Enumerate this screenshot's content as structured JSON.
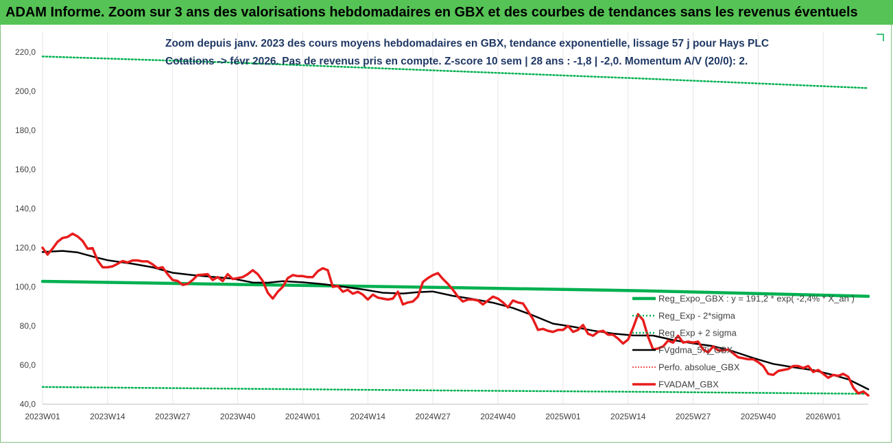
{
  "banner": {
    "title": "ADAM Informe. Zoom sur 3 ans des valorisations hebdomadaires en GBX et des courbes de tendances sans les revenus éventuels"
  },
  "colors": {
    "banner_bg": "#55c355",
    "title_text": "#1f3864",
    "reg_expo": "#00b050",
    "band": "#00b050",
    "fvgdma": "#000000",
    "fvadam": "#e81c1c",
    "perfo": "#e81c1c"
  },
  "chart_data": {
    "type": "line",
    "title": [
      "Zoom depuis janv. 2023 des cours moyens hebdomadaires en GBX, tendance exponentielle, lissage 57 j pour Hays PLC",
      "Cotations -> févr 2026.  Pas de revenus pris en compte. Z-score 10 sem | 28 ans : -1,8 | -2,0. Momentum A/V (20/0): 2."
    ],
    "ylim": [
      40,
      220
    ],
    "yticks": [
      "40,0",
      "60,0",
      "80,0",
      "100,0",
      "120,0",
      "140,0",
      "160,0",
      "180,0",
      "200,0",
      "220,0"
    ],
    "xticks": [
      "2023W01",
      "2023W14",
      "2023W27",
      "2023W40",
      "2024W01",
      "2024W14",
      "2024W27",
      "2024W40",
      "2025W01",
      "2025W14",
      "2025W27",
      "2025W40",
      "2026W01"
    ],
    "x_week_range": [
      0,
      165
    ],
    "xgrid": true,
    "ygrid": false,
    "legend_position": "lower-right",
    "series": [
      {
        "name": "Reg_Expo_GBX : y = 191,2 * exp( -2,4% * X_an )",
        "style": "thick",
        "points": [
          [
            0,
            102.8
          ],
          [
            40,
            101.2
          ],
          [
            80,
            99.7
          ],
          [
            120,
            98.0
          ],
          [
            165,
            95.2
          ]
        ]
      },
      {
        "name": "Reg_Exp - 2*sigma",
        "style": "dotted",
        "points": [
          [
            0,
            48.8
          ],
          [
            40,
            47.9
          ],
          [
            80,
            47.0
          ],
          [
            120,
            46.3
          ],
          [
            165,
            45.3
          ]
        ]
      },
      {
        "name": "Reg_Exp + 2 sigma",
        "style": "dotted",
        "points": [
          [
            0,
            217.8
          ],
          [
            40,
            214.5
          ],
          [
            80,
            210.5
          ],
          [
            120,
            206.5
          ],
          [
            165,
            201.6
          ]
        ]
      },
      {
        "name": "FVgdma_57j_GBX",
        "style": "solid",
        "points": [
          [
            0,
            117.8
          ],
          [
            4,
            118.4
          ],
          [
            7,
            117.6
          ],
          [
            10,
            115.5
          ],
          [
            13,
            113.6
          ],
          [
            18,
            111.8
          ],
          [
            22,
            110.0
          ],
          [
            26,
            107.2
          ],
          [
            30,
            106.0
          ],
          [
            34,
            105.1
          ],
          [
            38,
            104.2
          ],
          [
            42,
            102.2
          ],
          [
            45,
            102.1
          ],
          [
            48,
            102.9
          ],
          [
            52,
            102.3
          ],
          [
            56,
            101.4
          ],
          [
            60,
            100.1
          ],
          [
            64,
            98.7
          ],
          [
            68,
            97.0
          ],
          [
            72,
            96.6
          ],
          [
            75,
            97.3
          ],
          [
            78,
            97.6
          ],
          [
            82,
            95.4
          ],
          [
            86,
            93.8
          ],
          [
            90,
            91.9
          ],
          [
            94,
            89.2
          ],
          [
            98,
            85.4
          ],
          [
            102,
            81.2
          ],
          [
            106,
            79.6
          ],
          [
            110,
            77.6
          ],
          [
            114,
            76.1
          ],
          [
            118,
            75.2
          ],
          [
            122,
            75.1
          ],
          [
            126,
            72.8
          ],
          [
            130,
            71.1
          ],
          [
            134,
            69.7
          ],
          [
            138,
            67.0
          ],
          [
            142,
            63.6
          ],
          [
            146,
            60.6
          ],
          [
            150,
            58.9
          ],
          [
            154,
            57.4
          ],
          [
            158,
            54.9
          ],
          [
            161,
            52.7
          ],
          [
            165,
            47.6
          ]
        ]
      },
      {
        "name": "Perfo. absolue_GBX",
        "style": "dotted-red",
        "points": []
      },
      {
        "name": "FVADAM_GBX",
        "style": "thick",
        "points": [
          [
            0,
            120
          ],
          [
            1,
            116.5
          ],
          [
            2,
            119.5
          ],
          [
            3,
            123
          ],
          [
            4,
            125
          ],
          [
            5,
            125.5
          ],
          [
            6,
            127.2
          ],
          [
            7,
            125.8
          ],
          [
            8,
            123.5
          ],
          [
            9,
            119.5
          ],
          [
            10,
            119.8
          ],
          [
            11,
            113.5
          ],
          [
            12,
            110.0
          ],
          [
            13,
            110.0
          ],
          [
            14,
            110.5
          ],
          [
            15,
            111.8
          ],
          [
            16,
            113.2
          ],
          [
            17,
            112.5
          ],
          [
            18,
            113.5
          ],
          [
            19,
            113.5
          ],
          [
            20,
            113.0
          ],
          [
            21,
            113.0
          ],
          [
            22,
            111.5
          ],
          [
            23,
            109.5
          ],
          [
            24,
            110.0
          ],
          [
            25,
            106.5
          ],
          [
            26,
            103.5
          ],
          [
            27,
            103.0
          ],
          [
            28,
            101.0
          ],
          [
            29,
            101.5
          ],
          [
            30,
            103.5
          ],
          [
            31,
            106.0
          ],
          [
            32,
            106.2
          ],
          [
            33,
            106.5
          ],
          [
            34,
            103.5
          ],
          [
            35,
            105.0
          ],
          [
            36,
            103.0
          ],
          [
            37,
            106.5
          ],
          [
            38,
            104.0
          ],
          [
            39,
            104.5
          ],
          [
            40,
            105.0
          ],
          [
            41,
            106.5
          ],
          [
            42,
            108.5
          ],
          [
            43,
            106.5
          ],
          [
            44,
            103.0
          ],
          [
            45,
            97.0
          ],
          [
            46,
            94.0
          ],
          [
            47,
            97.5
          ],
          [
            48,
            100.0
          ],
          [
            49,
            104.5
          ],
          [
            50,
            106.0
          ],
          [
            51,
            105.5
          ],
          [
            52,
            105.5
          ],
          [
            53,
            105.0
          ],
          [
            54,
            105.0
          ],
          [
            55,
            108.0
          ],
          [
            56,
            109.5
          ],
          [
            57,
            108.5
          ],
          [
            58,
            100.0
          ],
          [
            59,
            100.5
          ],
          [
            60,
            97.5
          ],
          [
            61,
            98.5
          ],
          [
            62,
            96.5
          ],
          [
            63,
            97.5
          ],
          [
            64,
            96.0
          ],
          [
            65,
            93.5
          ],
          [
            66,
            96.0
          ],
          [
            67,
            94.5
          ],
          [
            68,
            94.0
          ],
          [
            69,
            93.5
          ],
          [
            70,
            94.0
          ],
          [
            71,
            97.5
          ],
          [
            72,
            91.0
          ],
          [
            73,
            92.0
          ],
          [
            74,
            92.5
          ],
          [
            75,
            95.0
          ],
          [
            76,
            102.5
          ],
          [
            77,
            104.5
          ],
          [
            78,
            106.0
          ],
          [
            79,
            107.0
          ],
          [
            80,
            104.0
          ],
          [
            81,
            101.5
          ],
          [
            82,
            98.5
          ],
          [
            83,
            95.0
          ],
          [
            84,
            92.5
          ],
          [
            85,
            93.5
          ],
          [
            86,
            93.5
          ],
          [
            87,
            93.0
          ],
          [
            88,
            91.0
          ],
          [
            89,
            93.0
          ],
          [
            90,
            95.0
          ],
          [
            91,
            94.0
          ],
          [
            92,
            92.0
          ],
          [
            93,
            89.5
          ],
          [
            94,
            93.0
          ],
          [
            95,
            92.0
          ],
          [
            96,
            91.5
          ],
          [
            97,
            87.5
          ],
          [
            98,
            83.5
          ],
          [
            99,
            78.0
          ],
          [
            100,
            78.5
          ],
          [
            101,
            77.5
          ],
          [
            102,
            77.0
          ],
          [
            103,
            78.0
          ],
          [
            104,
            78.0
          ],
          [
            105,
            80.0
          ],
          [
            106,
            77.0
          ],
          [
            107,
            78.0
          ],
          [
            108,
            80.5
          ],
          [
            109,
            76.0
          ],
          [
            110,
            75.0
          ],
          [
            111,
            77.0
          ],
          [
            112,
            77.5
          ],
          [
            113,
            75.5
          ],
          [
            114,
            75.5
          ],
          [
            115,
            73.5
          ],
          [
            116,
            71.0
          ],
          [
            117,
            73.0
          ],
          [
            118,
            79.0
          ],
          [
            119,
            86.0
          ],
          [
            120,
            83.0
          ],
          [
            121,
            74.5
          ],
          [
            122,
            68.0
          ],
          [
            123,
            68.5
          ],
          [
            124,
            69.5
          ],
          [
            125,
            72.5
          ],
          [
            126,
            71.5
          ],
          [
            127,
            75.0
          ],
          [
            128,
            71.5
          ],
          [
            129,
            72.0
          ],
          [
            130,
            71.5
          ],
          [
            131,
            72.0
          ],
          [
            132,
            68.0
          ],
          [
            133,
            66.5
          ],
          [
            134,
            69.5
          ],
          [
            135,
            67.5
          ],
          [
            136,
            67.5
          ],
          [
            137,
            68.0
          ],
          [
            138,
            66.0
          ],
          [
            139,
            64.0
          ],
          [
            140,
            63.5
          ],
          [
            141,
            63.0
          ],
          [
            142,
            63.0
          ],
          [
            143,
            61.5
          ],
          [
            144,
            59.5
          ],
          [
            145,
            55.5
          ],
          [
            146,
            55.0
          ],
          [
            147,
            57.0
          ],
          [
            148,
            57.5
          ],
          [
            149,
            58.0
          ],
          [
            150,
            59.5
          ],
          [
            151,
            59.5
          ],
          [
            152,
            58.5
          ],
          [
            153,
            59.5
          ],
          [
            154,
            56.5
          ],
          [
            155,
            57.5
          ],
          [
            156,
            55.5
          ],
          [
            157,
            53.5
          ],
          [
            158,
            55.0
          ],
          [
            159,
            54.5
          ],
          [
            160,
            55.5
          ],
          [
            161,
            54.0
          ],
          [
            162,
            48.5
          ],
          [
            163,
            45.5
          ],
          [
            164,
            46.5
          ],
          [
            165,
            44.5
          ]
        ]
      }
    ]
  }
}
